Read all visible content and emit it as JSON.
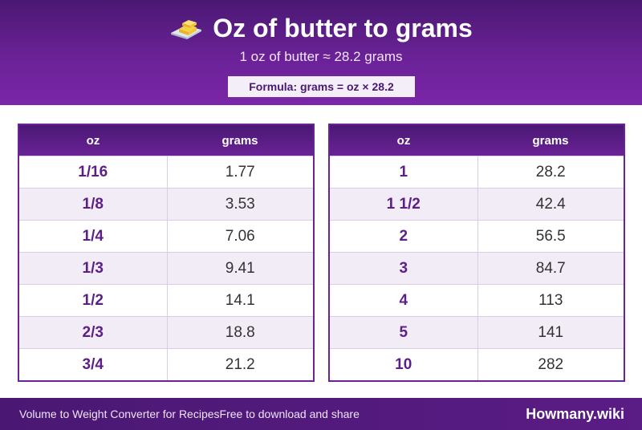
{
  "header": {
    "title": "Oz of butter to grams",
    "icon": "butter-icon",
    "subtitle": "1 oz of butter ≈ 28.2 grams",
    "formula": "Formula: grams = oz × 28.2"
  },
  "tables": [
    {
      "headers": [
        "oz",
        "grams"
      ],
      "rows": [
        [
          "1/16",
          "1.77"
        ],
        [
          "1/8",
          "3.53"
        ],
        [
          "1/4",
          "7.06"
        ],
        [
          "1/3",
          "9.41"
        ],
        [
          "1/2",
          "14.1"
        ],
        [
          "2/3",
          "18.8"
        ],
        [
          "3/4",
          "21.2"
        ]
      ]
    },
    {
      "headers": [
        "oz",
        "grams"
      ],
      "rows": [
        [
          "1",
          "28.2"
        ],
        [
          "1 1/2",
          "42.4"
        ],
        [
          "2",
          "56.5"
        ],
        [
          "3",
          "84.7"
        ],
        [
          "4",
          "113"
        ],
        [
          "5",
          "141"
        ],
        [
          "10",
          "282"
        ]
      ]
    }
  ],
  "footer": {
    "left_text_1": "Volume to Weight Converter for Recipes",
    "left_text_2": "Free to download and share",
    "brand": "Howmany.wiki"
  },
  "colors": {
    "primary": "#6a2296",
    "dark": "#4a1873",
    "row_alt": "#f2ecf7",
    "oz_text": "#5b1f86"
  }
}
